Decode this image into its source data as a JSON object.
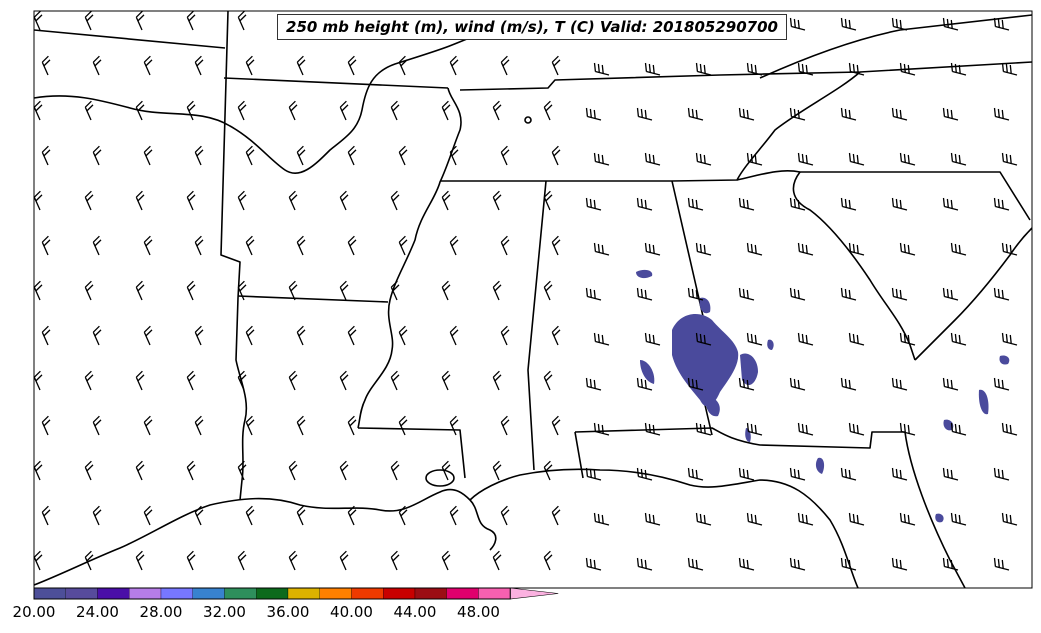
{
  "title": "250 mb height (m), wind (m/s), T (C) Valid: 201805290700",
  "colorbar": {
    "labels": [
      "20.00",
      "24.00",
      "28.00",
      "32.00",
      "36.00",
      "40.00",
      "44.00",
      "48.00"
    ],
    "colors": [
      "#4d4f99",
      "#574b9c",
      "#4a0fa8",
      "#b67de8",
      "#7777ff",
      "#3882cf",
      "#2e8f5c",
      "#0c6a1c",
      "#dcb200",
      "#ff8000",
      "#ee3a00",
      "#c80000",
      "#9b0d14",
      "#e0006d",
      "#f760b0",
      "#fbb1e0"
    ]
  },
  "colors": {
    "outline": "#000000",
    "temp_fill": "#4a4a9c",
    "background": "#ffffff"
  }
}
